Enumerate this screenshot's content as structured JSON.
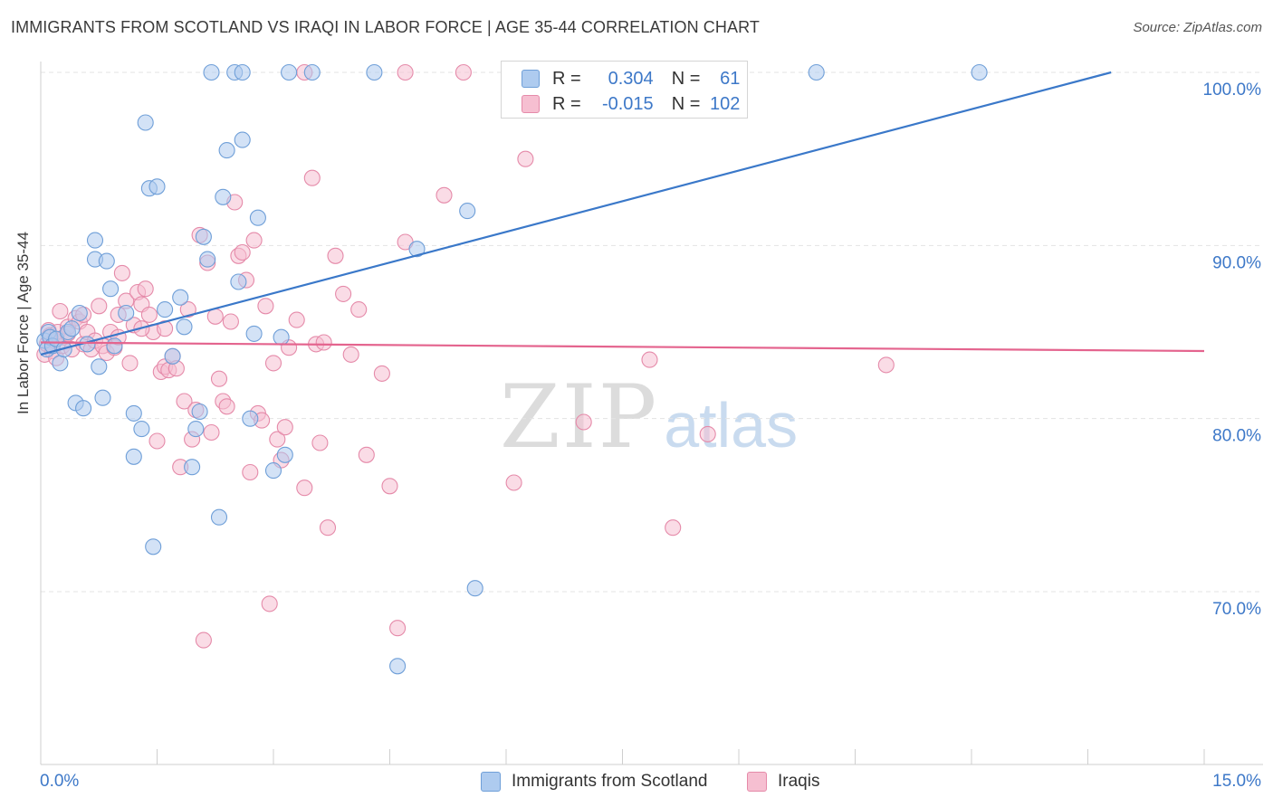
{
  "header": {
    "title": "IMMIGRANTS FROM SCOTLAND VS IRAQI IN LABOR FORCE | AGE 35-44 CORRELATION CHART",
    "source": "Source: ZipAtlas.com"
  },
  "watermark": {
    "zip": "ZIP",
    "atlas": "atlas"
  },
  "legend": {
    "rows": [
      {
        "r_label": "R =",
        "r_value": "0.304",
        "n_label": "N =",
        "n_value": "61"
      },
      {
        "r_label": "R =",
        "r_value": "-0.015",
        "n_label": "N =",
        "n_value": "102"
      }
    ]
  },
  "bottom_legend": {
    "items": [
      {
        "label": "Immigrants from Scotland"
      },
      {
        "label": "Iraqis"
      }
    ]
  },
  "colors": {
    "blue_fill": "#aecbef",
    "blue_stroke": "#6f9fd8",
    "blue_line": "#3a78c9",
    "pink_fill": "#f6bfd1",
    "pink_stroke": "#e58aa9",
    "pink_line": "#e4648e",
    "tick_text": "#3d78c8",
    "grid": "#e3e3e3"
  },
  "chart_data": {
    "type": "scatter",
    "title": "IMMIGRANTS FROM SCOTLAND VS IRAQI IN LABOR FORCE | AGE 35-44 CORRELATION CHART",
    "xlabel": "",
    "ylabel": "In Labor Force | Age 35-44",
    "xlim": [
      0,
      15
    ],
    "ylim": [
      60,
      100
    ],
    "x_tick_labels": [
      "0.0%",
      "15.0%"
    ],
    "y_tick_values": [
      70,
      80,
      90,
      100
    ],
    "y_tick_labels": [
      "70.0%",
      "80.0%",
      "90.0%",
      "100.0%"
    ],
    "grid": true,
    "legend_position": "top-center",
    "series": [
      {
        "name": "Immigrants from Scotland",
        "r": 0.304,
        "n": 61,
        "trend": {
          "x": [
            0.0,
            13.8
          ],
          "y": [
            83.7,
            100.0
          ]
        },
        "points": [
          [
            0.05,
            84.5
          ],
          [
            0.08,
            84.0
          ],
          [
            0.1,
            85.0
          ],
          [
            0.12,
            84.7
          ],
          [
            0.15,
            84.2
          ],
          [
            0.2,
            84.6
          ],
          [
            0.25,
            83.2
          ],
          [
            0.3,
            84.0
          ],
          [
            0.35,
            85.0
          ],
          [
            0.4,
            85.2
          ],
          [
            0.45,
            80.9
          ],
          [
            0.5,
            86.1
          ],
          [
            0.55,
            80.6
          ],
          [
            0.6,
            84.3
          ],
          [
            0.7,
            90.3
          ],
          [
            0.7,
            89.2
          ],
          [
            0.75,
            83.0
          ],
          [
            0.8,
            81.2
          ],
          [
            0.85,
            89.1
          ],
          [
            0.9,
            87.5
          ],
          [
            1.1,
            86.1
          ],
          [
            1.2,
            80.3
          ],
          [
            1.2,
            77.8
          ],
          [
            1.3,
            79.4
          ],
          [
            1.35,
            97.1
          ],
          [
            1.4,
            93.3
          ],
          [
            1.45,
            72.6
          ],
          [
            1.5,
            93.4
          ],
          [
            1.6,
            86.3
          ],
          [
            1.7,
            83.6
          ],
          [
            1.8,
            87.0
          ],
          [
            1.85,
            85.3
          ],
          [
            1.95,
            77.2
          ],
          [
            2.0,
            79.4
          ],
          [
            2.05,
            80.4
          ],
          [
            2.1,
            90.5
          ],
          [
            2.15,
            89.2
          ],
          [
            2.2,
            100.0
          ],
          [
            2.3,
            74.3
          ],
          [
            2.35,
            92.8
          ],
          [
            2.4,
            95.5
          ],
          [
            2.5,
            100.0
          ],
          [
            2.55,
            87.9
          ],
          [
            2.6,
            100.0
          ],
          [
            2.6,
            96.1
          ],
          [
            2.7,
            80.0
          ],
          [
            2.75,
            84.9
          ],
          [
            2.8,
            91.6
          ],
          [
            3.0,
            77.0
          ],
          [
            3.1,
            84.7
          ],
          [
            3.15,
            77.9
          ],
          [
            3.2,
            100.0
          ],
          [
            3.5,
            100.0
          ],
          [
            4.3,
            100.0
          ],
          [
            4.6,
            65.7
          ],
          [
            4.85,
            89.8
          ],
          [
            5.5,
            92.0
          ],
          [
            5.6,
            70.2
          ],
          [
            10.0,
            100.0
          ],
          [
            12.1,
            100.0
          ],
          [
            0.95,
            84.2
          ]
        ]
      },
      {
        "name": "Iraqis",
        "r": -0.015,
        "n": 102,
        "trend": {
          "x": [
            0.0,
            15.0
          ],
          "y": [
            84.4,
            83.9
          ]
        },
        "points": [
          [
            0.05,
            83.7
          ],
          [
            0.08,
            84.3
          ],
          [
            0.1,
            85.1
          ],
          [
            0.12,
            84.8
          ],
          [
            0.15,
            83.9
          ],
          [
            0.18,
            84.5
          ],
          [
            0.2,
            83.5
          ],
          [
            0.22,
            85.0
          ],
          [
            0.25,
            86.2
          ],
          [
            0.28,
            84.2
          ],
          [
            0.3,
            84.7
          ],
          [
            0.35,
            85.3
          ],
          [
            0.4,
            84.0
          ],
          [
            0.45,
            85.8
          ],
          [
            0.5,
            85.6
          ],
          [
            0.55,
            84.3
          ],
          [
            0.6,
            85.0
          ],
          [
            0.65,
            84.0
          ],
          [
            0.7,
            84.5
          ],
          [
            0.75,
            86.5
          ],
          [
            0.8,
            84.2
          ],
          [
            0.85,
            83.8
          ],
          [
            0.9,
            85.0
          ],
          [
            0.95,
            84.1
          ],
          [
            1.0,
            86.0
          ],
          [
            1.05,
            88.4
          ],
          [
            1.1,
            86.8
          ],
          [
            1.15,
            83.2
          ],
          [
            1.2,
            85.4
          ],
          [
            1.25,
            87.3
          ],
          [
            1.3,
            86.6
          ],
          [
            1.35,
            87.5
          ],
          [
            1.4,
            86.0
          ],
          [
            1.45,
            85.0
          ],
          [
            1.5,
            78.7
          ],
          [
            1.55,
            82.7
          ],
          [
            1.6,
            83.0
          ],
          [
            1.65,
            82.8
          ],
          [
            1.7,
            83.6
          ],
          [
            1.75,
            82.9
          ],
          [
            1.8,
            77.2
          ],
          [
            1.85,
            81.0
          ],
          [
            1.9,
            86.3
          ],
          [
            1.95,
            78.8
          ],
          [
            2.0,
            80.5
          ],
          [
            2.05,
            90.6
          ],
          [
            2.1,
            67.2
          ],
          [
            2.15,
            89.0
          ],
          [
            2.2,
            79.2
          ],
          [
            2.25,
            85.9
          ],
          [
            2.3,
            82.3
          ],
          [
            2.35,
            81.0
          ],
          [
            2.4,
            80.7
          ],
          [
            2.45,
            85.6
          ],
          [
            2.5,
            92.5
          ],
          [
            2.55,
            89.4
          ],
          [
            2.6,
            89.6
          ],
          [
            2.65,
            88.0
          ],
          [
            2.7,
            76.9
          ],
          [
            2.75,
            90.3
          ],
          [
            2.8,
            80.3
          ],
          [
            2.85,
            79.9
          ],
          [
            2.9,
            86.5
          ],
          [
            2.95,
            69.3
          ],
          [
            3.0,
            83.2
          ],
          [
            3.05,
            78.8
          ],
          [
            3.1,
            77.6
          ],
          [
            3.15,
            79.5
          ],
          [
            3.2,
            84.1
          ],
          [
            3.3,
            85.7
          ],
          [
            3.4,
            76.0
          ],
          [
            3.5,
            93.9
          ],
          [
            3.55,
            84.3
          ],
          [
            3.6,
            78.6
          ],
          [
            3.65,
            84.4
          ],
          [
            3.7,
            73.7
          ],
          [
            3.8,
            89.4
          ],
          [
            3.9,
            87.2
          ],
          [
            4.0,
            83.7
          ],
          [
            4.1,
            86.3
          ],
          [
            4.2,
            77.9
          ],
          [
            4.4,
            82.6
          ],
          [
            4.5,
            76.1
          ],
          [
            4.6,
            67.9
          ],
          [
            4.7,
            90.2
          ],
          [
            5.2,
            92.9
          ],
          [
            5.45,
            100.0
          ],
          [
            6.1,
            76.3
          ],
          [
            6.25,
            95.0
          ],
          [
            6.45,
            99.9
          ],
          [
            7.0,
            79.8
          ],
          [
            7.85,
            83.4
          ],
          [
            8.15,
            73.7
          ],
          [
            8.6,
            79.1
          ],
          [
            10.9,
            83.1
          ],
          [
            3.4,
            100.0
          ],
          [
            4.7,
            100.0
          ],
          [
            1.6,
            85.2
          ],
          [
            0.55,
            86.0
          ],
          [
            0.35,
            84.9
          ],
          [
            1.0,
            84.7
          ],
          [
            1.3,
            85.2
          ]
        ]
      }
    ]
  }
}
